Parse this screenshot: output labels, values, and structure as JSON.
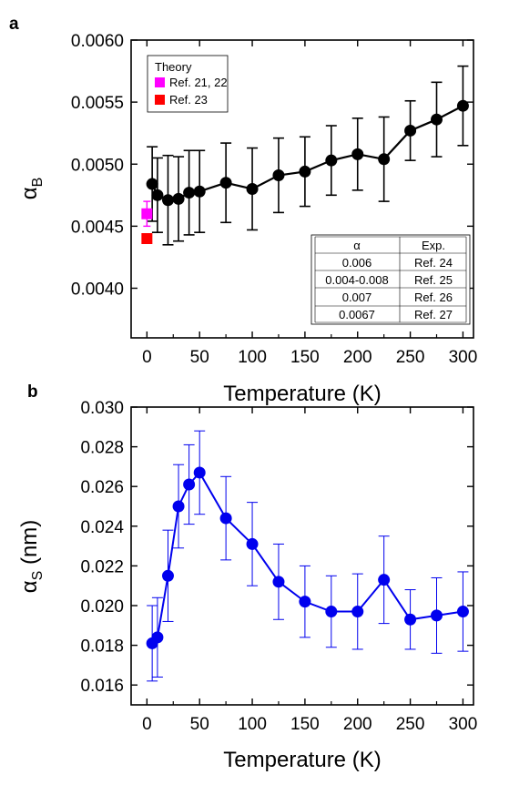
{
  "chart_data": [
    {
      "type": "line",
      "panel_label": "a",
      "xlabel": "Temperature (K)",
      "ylabel": "α",
      "ylabel_sub": "B",
      "xlim": [
        -15,
        310
      ],
      "ylim": [
        0.0036,
        0.006
      ],
      "x_ticks": [
        0,
        50,
        100,
        150,
        200,
        250,
        300
      ],
      "y_ticks": [
        0.004,
        0.0045,
        0.005,
        0.0055,
        0.006
      ],
      "y_tick_labels": [
        "0.0040",
        "0.0045",
        "0.0050",
        "0.0055",
        "0.0060"
      ],
      "grid": false,
      "series": [
        {
          "color": "#000000",
          "x": [
            5,
            10,
            20,
            30,
            40,
            50,
            75,
            100,
            125,
            150,
            175,
            200,
            225,
            250,
            275,
            300
          ],
          "y": [
            0.00484,
            0.00475,
            0.00471,
            0.00472,
            0.00477,
            0.00478,
            0.00485,
            0.0048,
            0.00491,
            0.00494,
            0.00503,
            0.00508,
            0.00504,
            0.00527,
            0.00536,
            0.00547
          ],
          "err": [
            0.0003,
            0.0003,
            0.00036,
            0.00034,
            0.00034,
            0.00033,
            0.00032,
            0.00033,
            0.0003,
            0.00028,
            0.00028,
            0.00029,
            0.00034,
            0.00024,
            0.0003,
            0.00032
          ]
        }
      ],
      "theory_points": [
        {
          "name": "Ref. 21, 22",
          "color": "#ff00ff",
          "x": 0,
          "y": 0.0046,
          "err": 0.0001
        },
        {
          "name": "Ref. 23",
          "color": "#ff0000",
          "x": 0,
          "y": 0.0044,
          "err": 0
        }
      ],
      "legend": {
        "title": "Theory",
        "position": "top-left",
        "entries": [
          {
            "label": "Ref. 21, 22",
            "color": "#ff00ff"
          },
          {
            "label": "Ref. 23",
            "color": "#ff0000"
          }
        ]
      },
      "table": {
        "position": "bottom-right",
        "headers": [
          "α",
          "Exp."
        ],
        "rows": [
          [
            "0.006",
            "Ref. 24"
          ],
          [
            "0.004-0.008",
            "Ref. 25"
          ],
          [
            "0.007",
            "Ref. 26"
          ],
          [
            "0.0067",
            "Ref. 27"
          ]
        ]
      }
    },
    {
      "type": "line",
      "panel_label": "b",
      "xlabel": "Temperature (K)",
      "ylabel": "α",
      "ylabel_sub": "S",
      "ylabel_unit": " (nm)",
      "xlim": [
        -15,
        310
      ],
      "ylim": [
        0.015,
        0.03
      ],
      "x_ticks": [
        0,
        50,
        100,
        150,
        200,
        250,
        300
      ],
      "y_ticks": [
        0.016,
        0.018,
        0.02,
        0.022,
        0.024,
        0.026,
        0.028,
        0.03
      ],
      "y_tick_labels": [
        "0.016",
        "0.018",
        "0.020",
        "0.022",
        "0.024",
        "0.026",
        "0.028",
        "0.030"
      ],
      "grid": false,
      "series": [
        {
          "color": "#0000ee",
          "x": [
            5,
            10,
            20,
            30,
            40,
            50,
            75,
            100,
            125,
            150,
            175,
            200,
            225,
            250,
            275,
            300
          ],
          "y": [
            0.0181,
            0.0184,
            0.0215,
            0.025,
            0.0261,
            0.0267,
            0.0244,
            0.0231,
            0.0212,
            0.0202,
            0.0197,
            0.0197,
            0.0213,
            0.0193,
            0.0195,
            0.0197
          ],
          "err": [
            0.0019,
            0.002,
            0.0023,
            0.0021,
            0.002,
            0.0021,
            0.0021,
            0.0021,
            0.0019,
            0.0018,
            0.0018,
            0.0019,
            0.0022,
            0.0015,
            0.0019,
            0.002
          ]
        }
      ]
    }
  ]
}
